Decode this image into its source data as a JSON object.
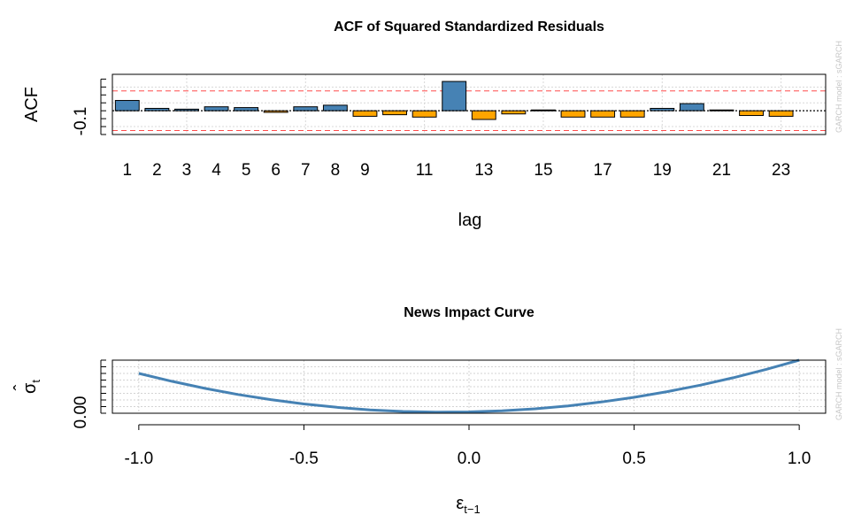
{
  "watermark": "GARCH model : sGARCH",
  "chart_data": [
    {
      "type": "bar",
      "title": "ACF of Squared Standardized Residuals",
      "xlabel": "lag",
      "ylabel": "ACF",
      "x_tick_labels": [
        "1",
        "2",
        "3",
        "4",
        "5",
        "6",
        "7",
        "8",
        "9",
        "11",
        "13",
        "15",
        "17",
        "19",
        "21",
        "23"
      ],
      "y_tick_labels": [
        "-0.1"
      ],
      "lags": [
        1,
        2,
        3,
        4,
        5,
        6,
        7,
        8,
        9,
        10,
        11,
        12,
        13,
        14,
        15,
        16,
        17,
        18,
        19,
        20,
        21,
        22,
        23
      ],
      "values": [
        0.0325,
        0.0075,
        0.005,
        0.0125,
        0.01,
        -0.005,
        0.0125,
        0.0175,
        -0.0175,
        -0.0125,
        -0.02,
        0.0925,
        -0.0275,
        -0.01,
        0.0025,
        -0.02,
        -0.02,
        -0.02,
        0.0075,
        0.0225,
        0.0025,
        -0.015,
        -0.0175
      ],
      "confidence_bounds": [
        -0.0625,
        0.0625
      ],
      "ylim": [
        -0.075,
        0.115
      ],
      "colors": {
        "positive": "#4682b4",
        "negative": "#ffa500",
        "bound": "#ff0000",
        "zero": "#000000"
      },
      "grid": true
    },
    {
      "type": "line",
      "title": "News Impact Curve",
      "xlabel": "ε",
      "xlabel_sub": "t−1",
      "ylabel": "σ",
      "ylabel_hat": "ˆ",
      "ylabel_sub": "t",
      "x_tick_labels": [
        "-1.0",
        "-0.5",
        "0.0",
        "0.5",
        "1.0"
      ],
      "y_tick_labels": [
        "0.00"
      ],
      "x": [
        -1.0,
        -0.9,
        -0.8,
        -0.7,
        -0.6,
        -0.5,
        -0.4,
        -0.3,
        -0.2,
        -0.1,
        0.0,
        0.1,
        0.2,
        0.3,
        0.4,
        0.5,
        0.6,
        0.7,
        0.8,
        0.9,
        1.0
      ],
      "y": [
        0.3,
        0.2404,
        0.1876,
        0.1416,
        0.1024,
        0.07,
        0.0444,
        0.0256,
        0.0136,
        0.0084,
        0.01,
        0.0184,
        0.0336,
        0.0556,
        0.0844,
        0.12,
        0.1624,
        0.2116,
        0.2676,
        0.3304,
        0.4
      ],
      "xlim": [
        -1.0,
        1.0
      ],
      "ylim": [
        0.0,
        0.4
      ],
      "colors": {
        "line": "#4682b4",
        "grid": "#d3d3d3"
      },
      "grid": true
    }
  ]
}
